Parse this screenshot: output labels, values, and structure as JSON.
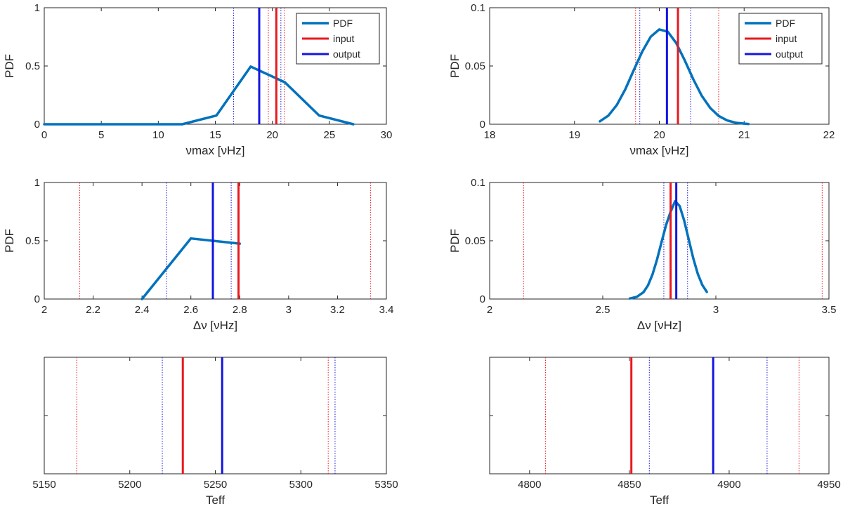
{
  "colors": {
    "pdf": "#0072BD",
    "input": "#E8191F",
    "output": "#1414E0",
    "axis": "#262626"
  },
  "legend": {
    "pdf": "PDF",
    "input": "input",
    "output": "output"
  },
  "chart_data": [
    {
      "type": "line",
      "xlabel": "νmax [νHz]",
      "ylabel": "PDF",
      "xlim": [
        0,
        30
      ],
      "ylim": [
        0,
        1
      ],
      "xticks": [
        "0",
        "5",
        "10",
        "15",
        "20",
        "25",
        "30"
      ],
      "yticks": [
        "0",
        "0.5",
        "1"
      ],
      "legend": true,
      "legend_position": "top-right",
      "series": [
        {
          "name": "PDF",
          "x": [
            0,
            12.1,
            15.1,
            18.1,
            21.1,
            24.1,
            27.1
          ],
          "y": [
            0,
            0,
            0.075,
            0.495,
            0.36,
            0.075,
            0
          ]
        }
      ],
      "input": {
        "value": 20.35,
        "lower": 19.65,
        "upper": 21.05
      },
      "output": {
        "value": 18.85,
        "lower": 16.6,
        "upper": 20.75
      }
    },
    {
      "type": "line",
      "xlabel": "νmax [νHz]",
      "ylabel": "PDF",
      "xlim": [
        18,
        22
      ],
      "ylim": [
        0,
        0.1
      ],
      "xticks": [
        "18",
        "19",
        "20",
        "21",
        "22"
      ],
      "yticks": [
        "0",
        "0.05",
        "0.1"
      ],
      "legend": true,
      "legend_position": "top-right",
      "series": [
        {
          "name": "PDF",
          "x": [
            19.3,
            19.4,
            19.5,
            19.6,
            19.7,
            19.8,
            19.9,
            20.0,
            20.1,
            20.2,
            20.3,
            20.4,
            20.5,
            20.6,
            20.7,
            20.8,
            20.9,
            21.0,
            21.05
          ],
          "y": [
            0.0025,
            0.0074,
            0.0166,
            0.0301,
            0.0466,
            0.0625,
            0.0752,
            0.0814,
            0.0794,
            0.0696,
            0.0548,
            0.0387,
            0.0245,
            0.014,
            0.0071,
            0.0033,
            0.0013,
            0.0005,
            0.0002
          ]
        }
      ],
      "input": {
        "value": 20.22,
        "lower": 19.72,
        "upper": 20.7
      },
      "output": {
        "value": 20.09,
        "lower": 19.77,
        "upper": 20.37
      }
    },
    {
      "type": "line",
      "xlabel": "Δν [νHz]",
      "ylabel": "PDF",
      "xlim": [
        2,
        3.4
      ],
      "ylim": [
        0,
        1
      ],
      "xticks": [
        "2",
        "2.2",
        "2.4",
        "2.6",
        "2.8",
        "3",
        "3.2",
        "3.4"
      ],
      "yticks": [
        "0",
        "0.5",
        "1"
      ],
      "legend": false,
      "series": [
        {
          "name": "PDF",
          "x": [
            2.4,
            2.6,
            2.8
          ],
          "y": [
            0,
            0.52,
            0.475
          ]
        }
      ],
      "input": {
        "value": 2.795,
        "lower": 2.145,
        "upper": 3.335
      },
      "output": {
        "value": 2.69,
        "lower": 2.5,
        "upper": 2.765
      }
    },
    {
      "type": "line",
      "xlabel": "Δν [νHz]",
      "ylabel": "PDF",
      "xlim": [
        2,
        3.5
      ],
      "ylim": [
        0,
        0.1
      ],
      "xticks": [
        "2",
        "2.5",
        "3",
        "3.5"
      ],
      "yticks": [
        "0",
        "0.05",
        "0.1"
      ],
      "legend": false,
      "series": [
        {
          "name": "PDF",
          "x": [
            2.62,
            2.65,
            2.68,
            2.7,
            2.72,
            2.74,
            2.76,
            2.78,
            2.8,
            2.82,
            2.84,
            2.86,
            2.88,
            2.9,
            2.92,
            2.94,
            2.96
          ],
          "y": [
            0.0005,
            0.0018,
            0.0058,
            0.0117,
            0.0211,
            0.0339,
            0.0489,
            0.0635,
            0.0749,
            0.084,
            0.0798,
            0.0673,
            0.0512,
            0.0351,
            0.0217,
            0.0121,
            0.0061
          ]
        }
      ],
      "input": {
        "value": 2.8,
        "lower": 2.15,
        "upper": 3.47
      },
      "output": {
        "value": 2.825,
        "lower": 2.77,
        "upper": 2.875
      }
    },
    {
      "type": "line",
      "xlabel": "Teff",
      "ylabel": "",
      "xlim": [
        5150,
        5350
      ],
      "ylim": [
        0,
        1
      ],
      "xticks": [
        "5150",
        "5200",
        "5250",
        "5300",
        "5350"
      ],
      "yticks": [],
      "legend": false,
      "series": [],
      "input": {
        "value": 5231,
        "lower": 5169,
        "upper": 5316
      },
      "output": {
        "value": 5254,
        "lower": 5219,
        "upper": 5320
      }
    },
    {
      "type": "line",
      "xlabel": "Teff",
      "ylabel": "",
      "xlim": [
        4780,
        4950
      ],
      "ylim": [
        0,
        1
      ],
      "xticks": [
        "4800",
        "4850",
        "4900",
        "4950"
      ],
      "yticks": [],
      "legend": false,
      "series": [],
      "input": {
        "value": 4851,
        "lower": 4808,
        "upper": 4935
      },
      "output": {
        "value": 4892,
        "lower": 4860,
        "upper": 4919
      }
    }
  ]
}
